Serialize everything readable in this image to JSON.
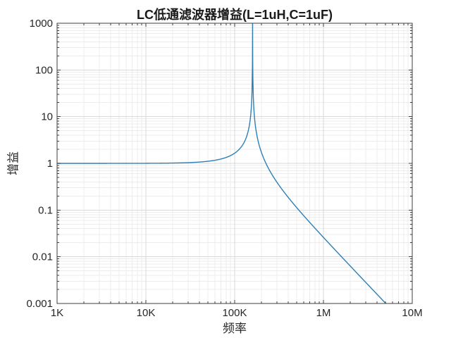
{
  "chart_data": {
    "type": "line",
    "title": "LC低通滤波器增益(L=1uH,C=1uF)",
    "xlabel": "频率",
    "ylabel": "增益",
    "x_scale": "log",
    "y_scale": "log",
    "xlim": [
      1000,
      10000000
    ],
    "ylim": [
      0.001,
      1000
    ],
    "grid": {
      "major": true,
      "minor": true
    },
    "legend": "none",
    "x_ticks": [
      {
        "value": 1000,
        "label": "1K"
      },
      {
        "value": 10000,
        "label": "10K"
      },
      {
        "value": 100000,
        "label": "100K"
      },
      {
        "value": 1000000,
        "label": "1M"
      },
      {
        "value": 10000000,
        "label": "10M"
      }
    ],
    "y_ticks": [
      {
        "value": 1000,
        "label": "1000"
      },
      {
        "value": 100,
        "label": "100"
      },
      {
        "value": 10,
        "label": "10"
      },
      {
        "value": 1,
        "label": "1"
      },
      {
        "value": 0.1,
        "label": "0.1"
      },
      {
        "value": 0.01,
        "label": "0.01"
      },
      {
        "value": 0.001,
        "label": "0.001"
      }
    ],
    "series": [
      {
        "name": "LC低通滤波器增益",
        "color": "#2e7fb5",
        "line_width": 1.4,
        "model": {
          "type": "lc-lowpass-resonance",
          "f0_hz": 159155,
          "formula": "gain = 1 / |1 - (f/f0)^2|",
          "L": "1uH",
          "C": "1uF"
        },
        "sample_points": [
          [
            1000,
            1.0
          ],
          [
            10000,
            1.004
          ],
          [
            31623,
            1.041
          ],
          [
            100000,
            1.652
          ],
          [
            126000,
            2.68
          ],
          [
            150000,
            8.95
          ],
          [
            159155,
            1000
          ],
          [
            170000,
            7.1
          ],
          [
            200000,
            1.73
          ],
          [
            316230,
            0.339
          ],
          [
            1000000,
            0.026
          ],
          [
            3162300,
            0.0025
          ],
          [
            5030000,
            0.001
          ]
        ]
      }
    ],
    "plot_styles": {
      "axis_color": "#3f3f3f",
      "major_grid_color": "#d9d9d9",
      "minor_grid_color": "#ececec",
      "text_color": "#262626",
      "background": "#ffffff"
    }
  }
}
